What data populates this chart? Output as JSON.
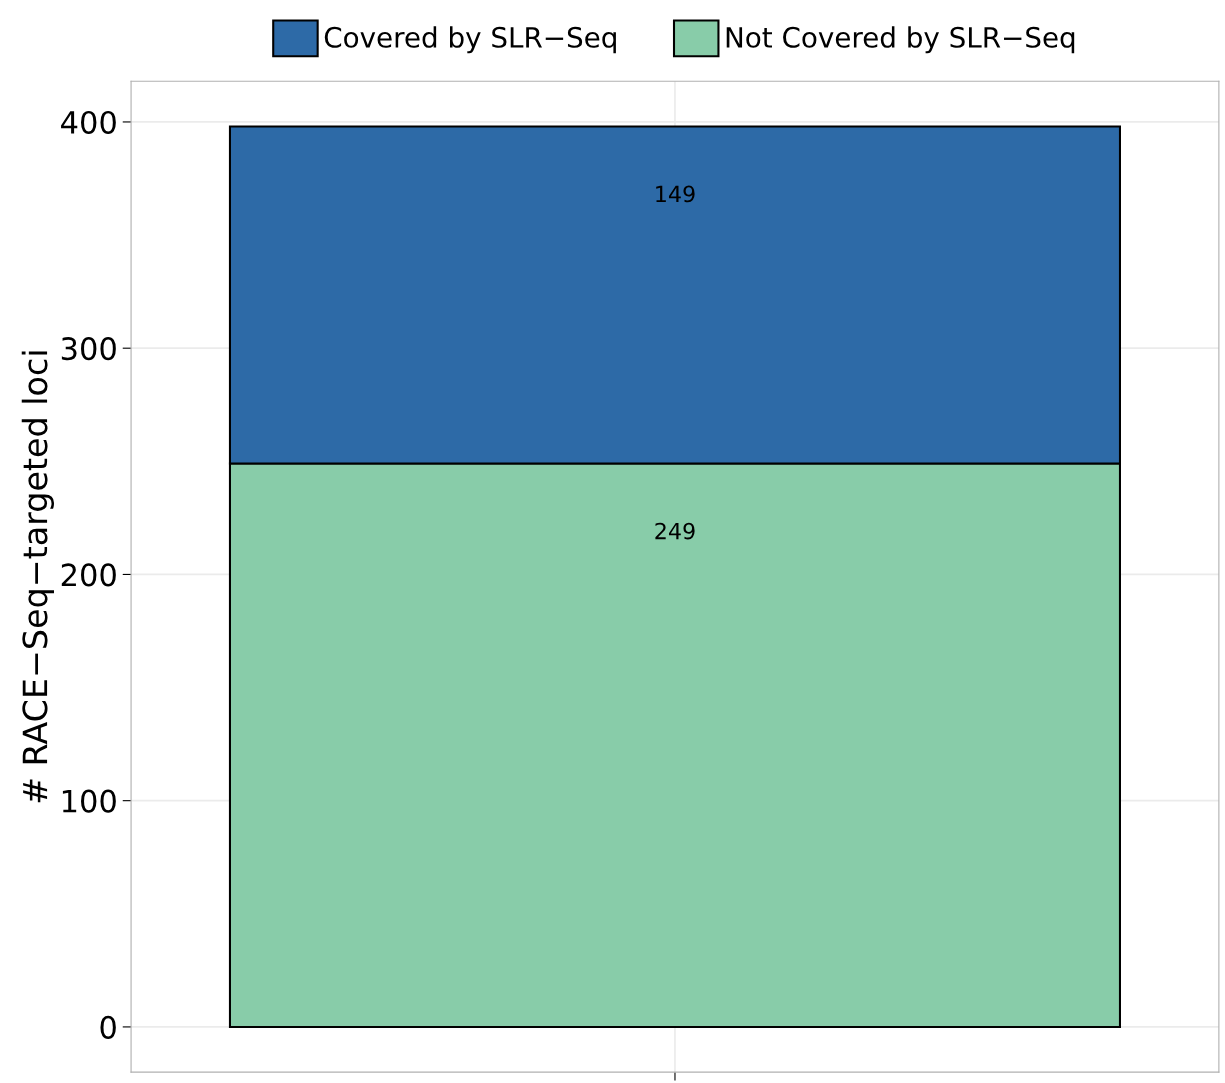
{
  "chart_data": {
    "type": "bar",
    "stacked": true,
    "ylabel": "# RACE−Seq−targeted loci",
    "categories": [
      null
    ],
    "series": [
      {
        "name": "Not Covered by SLR−Seq",
        "color": "#88cca9",
        "values": [
          249
        ]
      },
      {
        "name": "Covered by SLR−Seq",
        "color": "#2d6aa7",
        "values": [
          149
        ]
      }
    ],
    "ylim": [
      -20,
      418
    ],
    "yticks": [
      0,
      100,
      200,
      300,
      400
    ],
    "grid": true,
    "legend": "top",
    "data_labels": true
  }
}
